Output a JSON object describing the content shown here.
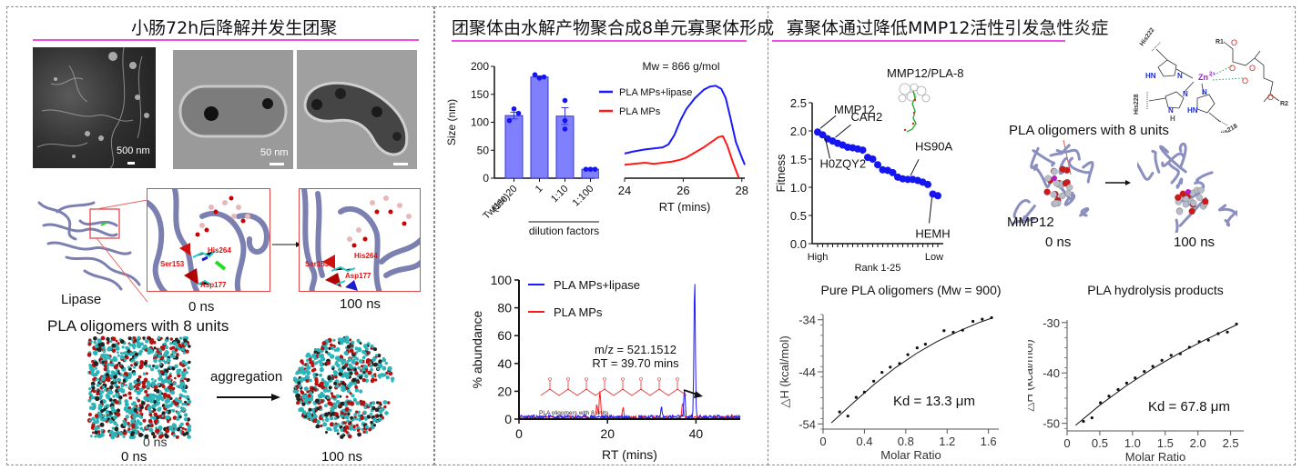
{
  "panels": [
    {
      "title": "小肠72h后降解并发生团聚",
      "micrographs": {
        "sem_scale": "500 nm",
        "tem_scale": "50 nm"
      },
      "lipase": {
        "label": "Lipase",
        "snapshots": [
          {
            "time": "0 ns",
            "residues": [
              "His264",
              "Ser153",
              "Asp177"
            ]
          },
          {
            "time": "100 ns",
            "residues": [
              "His264",
              "Ser153",
              "Asp177"
            ]
          }
        ]
      },
      "aggregation": {
        "title": "PLA oligomers with 8 units",
        "arrow_label": "aggregation",
        "start_time": "0 ns",
        "end_time": "100 ns",
        "overlap_text": "0 ns"
      }
    },
    {
      "title": "团聚体由水解产物聚合成8单元寡聚体形成"
    },
    {
      "title": "寡聚体通过降低MMP12活性引发急性炎症",
      "docking": {
        "structure_label": "MMP12/PLA-8",
        "oligomer_label": "PLA oligomers with 8 units",
        "protein_label": "MMP12",
        "time_start": "0 ns",
        "time_end": "100 ns",
        "chem": {
          "residues": [
            "His222",
            "His228",
            "His218"
          ],
          "metal": "Zn",
          "metal_charge": "2+",
          "groups": [
            "R1",
            "R2"
          ],
          "atoms": {
            "N": "N",
            "HN": "HN",
            "H": "H",
            "O": "O"
          }
        }
      }
    }
  ],
  "colors": {
    "accent_line": "#f04ce6",
    "blue": "#1a1aff",
    "red": "#ff1a1a",
    "bar_fill": "#8080ff",
    "protein": "#8a8fc0"
  },
  "chart_data": [
    {
      "id": "dls",
      "type": "bar",
      "title": "",
      "ylabel": "Size (nm)",
      "xlabel": "dilution factors",
      "ylim": [
        0,
        200
      ],
      "yticks": [
        "0",
        "50",
        "100",
        "150",
        "200"
      ],
      "categories": [
        "Tween 20 (1%)",
        "1",
        "1:10",
        "1:100"
      ],
      "category_lines": [
        [
          "Tween 20",
          "(1%)"
        ],
        [
          "1"
        ],
        [
          "1:10"
        ],
        [
          "1:100"
        ]
      ],
      "values": [
        112,
        181,
        111,
        16
      ],
      "errors": [
        6,
        2,
        15,
        0.5
      ],
      "points": [
        [
          103,
          124,
          116
        ],
        [
          185,
          179,
          181
        ],
        [
          139,
          103,
          88
        ],
        [
          16,
          16,
          16
        ]
      ],
      "xlabel_group": [
        1,
        3
      ]
    },
    {
      "id": "gpc",
      "type": "line",
      "title": "Mw = 866 g/mol",
      "xlabel": "RT (mins)",
      "xlim": [
        24,
        28.1
      ],
      "xticks": [
        "24",
        "26",
        "28"
      ],
      "ylim": [
        0,
        1
      ],
      "series": [
        {
          "name": "PLA MPs+lipase",
          "color": "#1a1aff",
          "x": [
            24,
            24.3,
            24.7,
            25.0,
            25.3,
            25.5,
            25.7,
            25.9,
            26.1,
            26.4,
            26.7,
            26.9,
            27.1,
            27.3,
            27.45,
            27.6,
            27.8,
            28.0,
            28.1
          ],
          "y": [
            0.24,
            0.26,
            0.28,
            0.29,
            0.3,
            0.33,
            0.42,
            0.56,
            0.67,
            0.78,
            0.86,
            0.89,
            0.9,
            0.87,
            0.78,
            0.6,
            0.35,
            0.2,
            0.13
          ]
        },
        {
          "name": "PLA MPs",
          "color": "#ff1a1a",
          "x": [
            24,
            24.3,
            24.7,
            25.0,
            25.3,
            25.6,
            25.9,
            26.1,
            26.4,
            26.7,
            27.0,
            27.2,
            27.35,
            27.5,
            27.7,
            27.9
          ],
          "y": [
            0.13,
            0.14,
            0.15,
            0.14,
            0.15,
            0.16,
            0.18,
            0.2,
            0.25,
            0.3,
            0.36,
            0.4,
            0.41,
            0.32,
            0.15,
            0.0
          ]
        }
      ]
    },
    {
      "id": "ms",
      "type": "line",
      "title": "",
      "xlabel": "RT (mins)",
      "ylabel": "% abundance",
      "xlim": [
        0,
        50
      ],
      "ylim": [
        0,
        100
      ],
      "xticks": [
        "0",
        "20",
        "40"
      ],
      "yticks": [
        "0",
        "20",
        "40",
        "60",
        "80",
        "100"
      ],
      "annotation": {
        "mz": "m/z = 521.1512",
        "rt": "RT = 39.70 mins",
        "structure_caption": "PLA oligomers with 8 units"
      },
      "series": [
        {
          "name": "PLA MPs+lipase",
          "color": "#1a1aff",
          "peaks": [
            {
              "x": 37.4,
              "y": 20
            },
            {
              "x": 39.7,
              "y": 100
            },
            {
              "x": 32.2,
              "y": 7
            }
          ],
          "baseline": 3
        },
        {
          "name": "PLA MPs",
          "color": "#ff1a1a",
          "peaks": [
            {
              "x": 17.6,
              "y": 10
            },
            {
              "x": 18.3,
              "y": 20
            },
            {
              "x": 23.5,
              "y": 7
            },
            {
              "x": 37.0,
              "y": 11
            }
          ],
          "baseline": 2.5
        }
      ]
    },
    {
      "id": "fitness",
      "type": "scatter",
      "ylabel": "Fitness",
      "xlabel": "Rank 1-25",
      "x_end_labels": [
        "High",
        "Low"
      ],
      "ylim": [
        0,
        2.5
      ],
      "yticks": [
        "0.0",
        "0.5",
        "1.0",
        "1.5",
        "2.0",
        "2.5"
      ],
      "x": [
        1,
        2,
        3,
        4,
        5,
        6,
        7,
        8,
        9,
        10,
        11,
        12,
        13,
        14,
        15,
        16,
        17,
        18,
        19,
        20,
        21,
        22,
        23,
        24,
        25
      ],
      "y": [
        1.98,
        1.93,
        1.86,
        1.82,
        1.78,
        1.75,
        1.71,
        1.7,
        1.68,
        1.66,
        1.53,
        1.5,
        1.4,
        1.31,
        1.3,
        1.26,
        1.18,
        1.15,
        1.14,
        1.14,
        1.12,
        1.09,
        1.05,
        0.88,
        0.85
      ],
      "annotations": [
        {
          "label": "MMP12",
          "rank": 1
        },
        {
          "label": "H0ZQY2",
          "rank": 2
        },
        {
          "label": "CAH2",
          "rank": 4
        },
        {
          "label": "HS90A",
          "rank": 19
        },
        {
          "label": "HEMH",
          "rank": 24
        }
      ]
    },
    {
      "id": "itc_pure",
      "type": "scatter",
      "title": "Pure PLA oligomers (Mw = 900)",
      "xlabel": "Molar Ratio",
      "ylabel": "△H (kcal/mol)",
      "xlim": [
        0,
        1.7
      ],
      "ylim": [
        -55,
        -33
      ],
      "xticks": [
        "0",
        "0.4",
        "0.8",
        "1.2",
        "1.6"
      ],
      "yticks": [
        "-34",
        "-44",
        "-54"
      ],
      "annotation": "Kd = 13.3 μm",
      "x": [
        0.16,
        0.24,
        0.32,
        0.4,
        0.49,
        0.57,
        0.65,
        0.74,
        0.82,
        0.91,
        0.99,
        1.17,
        1.26,
        1.35,
        1.45,
        1.54,
        1.63
      ],
      "y": [
        -51.7,
        -52.5,
        -48.9,
        -47.9,
        -45.8,
        -44.1,
        -43.1,
        -42.4,
        -40.7,
        -39.4,
        -38.7,
        -36.1,
        -36.4,
        -36.0,
        -34.3,
        -33.9,
        -33.6
      ],
      "fit_x": [
        0.08,
        0.3,
        0.5,
        0.7,
        0.9,
        1.1,
        1.3,
        1.5,
        1.63
      ],
      "fit_y": [
        -53.8,
        -49.8,
        -46.3,
        -43.2,
        -40.5,
        -38.2,
        -36.3,
        -34.6,
        -33.7
      ]
    },
    {
      "id": "itc_hydrolysis",
      "type": "scatter",
      "title": "PLA hydrolysis products",
      "xlabel": "Molar Ratio",
      "ylabel": "△H (kcal/mol)",
      "xlim": [
        0,
        2.7
      ],
      "ylim": [
        -51.5,
        -29.5
      ],
      "xticks": [
        "0",
        "0.5",
        "1.0",
        "1.5",
        "2.0",
        "2.5"
      ],
      "yticks": [
        "-30",
        "-40",
        "-50"
      ],
      "annotation": "Kd = 67.8 μm",
      "x": [
        0.25,
        0.38,
        0.51,
        0.64,
        0.78,
        0.91,
        1.04,
        1.18,
        1.31,
        1.45,
        1.59,
        1.73,
        1.87,
        2.02,
        2.16,
        2.31,
        2.45,
        2.59
      ],
      "y": [
        -49.6,
        -48.9,
        -45.9,
        -44.6,
        -43.3,
        -42.0,
        -41.0,
        -39.7,
        -38.7,
        -37.5,
        -36.5,
        -36.2,
        -34.9,
        -33.8,
        -33.5,
        -32.2,
        -31.9,
        -30.3
      ],
      "fit_x": [
        0.13,
        0.5,
        0.9,
        1.3,
        1.7,
        2.1,
        2.6
      ],
      "fit_y": [
        -50.4,
        -46.4,
        -42.6,
        -39.2,
        -36.2,
        -33.5,
        -30.4
      ]
    }
  ]
}
